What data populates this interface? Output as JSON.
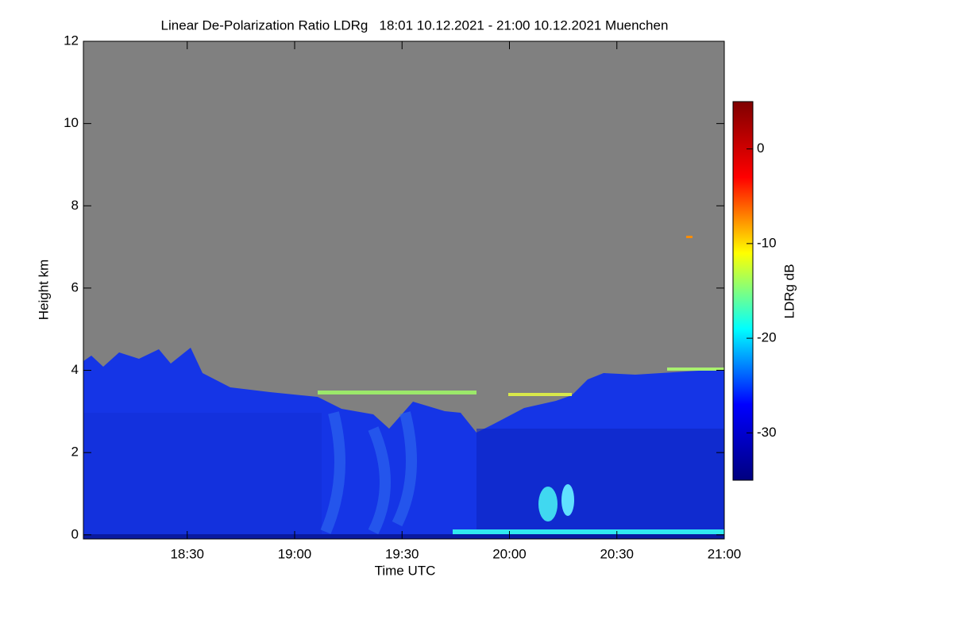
{
  "chart_data": {
    "type": "heatmap",
    "title": "Linear De-Polarization Ratio LDRg   18:01 10.12.2021 - 21:00 10.12.2021 Muenchen",
    "x_label": "Time UTC",
    "y_label": "Height km",
    "xlim": [
      1081,
      1260
    ],
    "xticks": [
      {
        "value": 1110,
        "label": "18:30"
      },
      {
        "value": 1140,
        "label": "19:00"
      },
      {
        "value": 1170,
        "label": "19:30"
      },
      {
        "value": 1200,
        "label": "20:00"
      },
      {
        "value": 1230,
        "label": "20:30"
      },
      {
        "value": 1260,
        "label": "21:00"
      }
    ],
    "ylim": [
      -0.1,
      12
    ],
    "yticks": [
      0,
      2,
      4,
      6,
      8,
      10,
      12
    ],
    "colorbar_label": "LDRg dB",
    "clim": [
      -35,
      5
    ],
    "cticks": [
      -30,
      -20,
      -10,
      0
    ],
    "colormap": [
      "#00007f",
      "#0000ff",
      "#00ffff",
      "#ffff00",
      "#ff0000",
      "#7f0000"
    ]
  }
}
